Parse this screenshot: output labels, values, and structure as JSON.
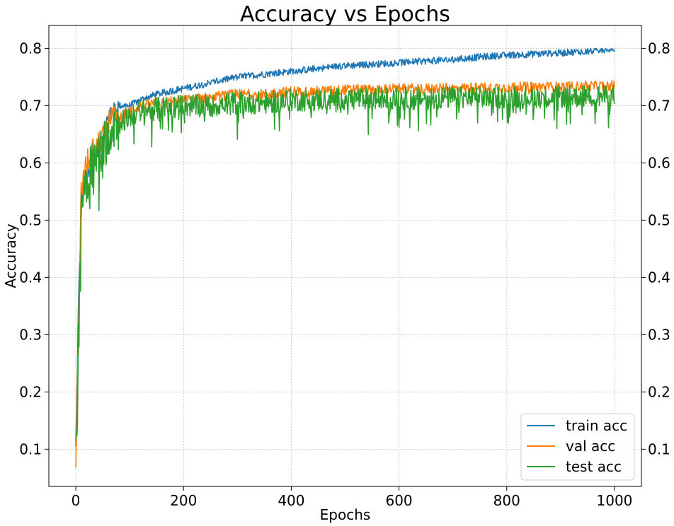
{
  "chart_data": {
    "type": "line",
    "title": "Accuracy vs Epochs",
    "xlabel": "Epochs",
    "ylabel": "Accuracy",
    "xlim": [
      -50,
      1050
    ],
    "ylim": [
      0.035,
      0.84
    ],
    "xticks": [
      0,
      200,
      400,
      600,
      800,
      1000
    ],
    "yticks": [
      0.1,
      0.2,
      0.3,
      0.4,
      0.5,
      0.6,
      0.7,
      0.8
    ],
    "ytick_labels": [
      "0.1",
      "0.2",
      "0.3",
      "0.4",
      "0.5",
      "0.6",
      "0.7",
      "0.8"
    ],
    "grid": true,
    "right_axis_ticks": true,
    "legend_position": "lower-right",
    "series": [
      {
        "name": "train acc",
        "color": "#1f77b4",
        "x": [
          0,
          5,
          10,
          15,
          20,
          30,
          40,
          50,
          60,
          70,
          80,
          100,
          120,
          150,
          200,
          250,
          300,
          350,
          400,
          450,
          500,
          550,
          600,
          650,
          700,
          750,
          800,
          850,
          900,
          950,
          1000
        ],
        "y": [
          0.1,
          0.35,
          0.52,
          0.56,
          0.58,
          0.6,
          0.62,
          0.64,
          0.68,
          0.69,
          0.7,
          0.7,
          0.71,
          0.72,
          0.73,
          0.74,
          0.75,
          0.755,
          0.76,
          0.765,
          0.77,
          0.772,
          0.775,
          0.778,
          0.78,
          0.785,
          0.788,
          0.79,
          0.792,
          0.795,
          0.8
        ]
      },
      {
        "name": "val acc",
        "color": "#ff7f0e",
        "x": [
          0,
          5,
          10,
          15,
          20,
          30,
          40,
          50,
          60,
          70,
          80,
          100,
          120,
          150,
          200,
          250,
          300,
          350,
          400,
          450,
          500,
          550,
          600,
          650,
          700,
          750,
          800,
          850,
          900,
          950,
          1000
        ],
        "y": [
          0.07,
          0.3,
          0.55,
          0.58,
          0.6,
          0.62,
          0.63,
          0.65,
          0.67,
          0.68,
          0.68,
          0.69,
          0.7,
          0.705,
          0.71,
          0.715,
          0.72,
          0.72,
          0.725,
          0.725,
          0.728,
          0.728,
          0.73,
          0.73,
          0.73,
          0.732,
          0.732,
          0.733,
          0.733,
          0.734,
          0.735
        ]
      },
      {
        "name": "test acc",
        "color": "#2ca02c",
        "x": [
          0,
          5,
          10,
          15,
          20,
          30,
          40,
          50,
          60,
          70,
          80,
          100,
          120,
          150,
          200,
          250,
          300,
          350,
          400,
          450,
          500,
          550,
          600,
          650,
          700,
          750,
          800,
          850,
          900,
          950,
          1000
        ],
        "y": [
          0.07,
          0.28,
          0.52,
          0.56,
          0.57,
          0.6,
          0.61,
          0.62,
          0.66,
          0.67,
          0.67,
          0.68,
          0.69,
          0.695,
          0.7,
          0.7,
          0.705,
          0.705,
          0.71,
          0.71,
          0.712,
          0.712,
          0.713,
          0.713,
          0.714,
          0.714,
          0.715,
          0.715,
          0.716,
          0.716,
          0.717
        ]
      }
    ]
  }
}
